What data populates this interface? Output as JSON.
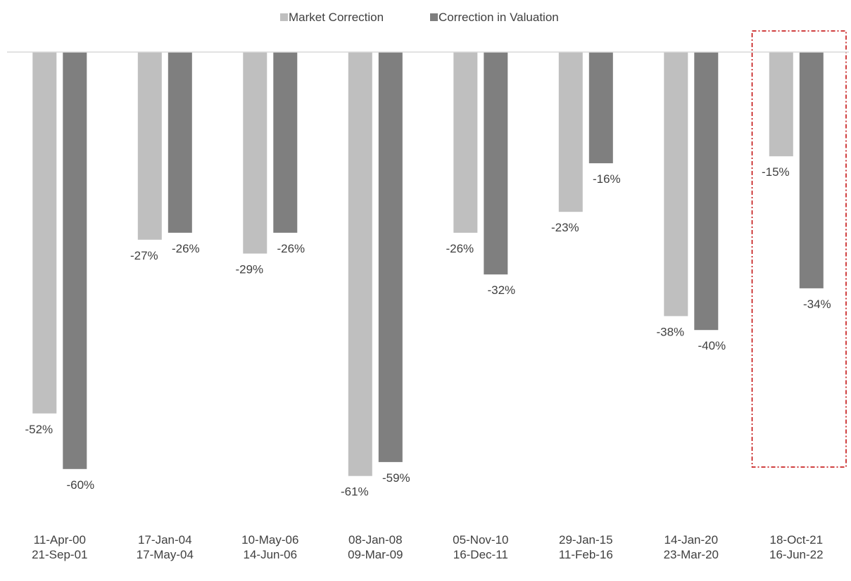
{
  "chart_data": {
    "type": "bar",
    "categories": [
      [
        "11-Apr-00",
        "21-Sep-01"
      ],
      [
        "17-Jan-04",
        "17-May-04"
      ],
      [
        "10-May-06",
        "14-Jun-06"
      ],
      [
        "08-Jan-08",
        "09-Mar-09"
      ],
      [
        "05-Nov-10",
        "16-Dec-11"
      ],
      [
        "29-Jan-15",
        "11-Feb-16"
      ],
      [
        "14-Jan-20",
        "23-Mar-20"
      ],
      [
        "18-Oct-21",
        "16-Jun-22"
      ]
    ],
    "series": [
      {
        "name": "Market Correction",
        "color": "#bfbfbf",
        "values": [
          -52,
          -27,
          -29,
          -61,
          -26,
          -23,
          -38,
          -15
        ],
        "labels": [
          "-52%",
          "-27%",
          "-29%",
          "-61%",
          "-26%",
          "-23%",
          "-38%",
          "-15%"
        ]
      },
      {
        "name": "Correction in Valuation",
        "color": "#7f7f7f",
        "values": [
          -60,
          -26,
          -26,
          -59,
          -32,
          -16,
          -40,
          -34
        ],
        "labels": [
          "-60%",
          "-26%",
          "-26%",
          "-59%",
          "-32%",
          "-16%",
          "-40%",
          "-34%"
        ]
      }
    ],
    "ylim": [
      -61,
      0
    ],
    "grid": false,
    "legend": "top-center",
    "highlight_category_index": 7,
    "highlight_color": "#c00000",
    "axis_color": "#d9d9d9"
  }
}
